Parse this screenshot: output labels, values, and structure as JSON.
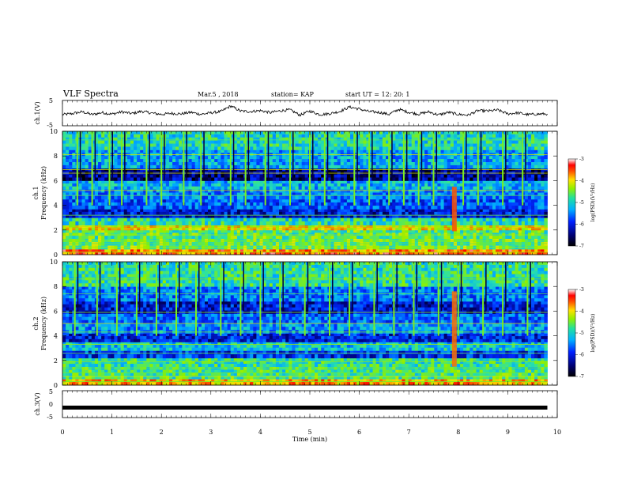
{
  "header": {
    "title": "VLF  Spectra",
    "date": "Mar.5  , 2018",
    "station": "station= KAP",
    "start": "start  UT  =   12: 20: 1"
  },
  "chart_data": [
    {
      "type": "line",
      "name": "ch1-waveform",
      "ylabel": "ch.1(V)",
      "ylim": [
        -5,
        5
      ],
      "yticks": [
        "5",
        "-5"
      ],
      "xlim": [
        0,
        10
      ],
      "x_end": 9.8,
      "points": [
        [
          0,
          -0.6
        ],
        [
          0.2,
          -0.2
        ],
        [
          0.4,
          0.5
        ],
        [
          0.6,
          -0.6
        ],
        [
          0.8,
          0.2
        ],
        [
          1.0,
          -0.4
        ],
        [
          1.2,
          0.5
        ],
        [
          1.4,
          -0.2
        ],
        [
          1.6,
          0.7
        ],
        [
          1.8,
          0.0
        ],
        [
          2.0,
          -0.5
        ],
        [
          2.2,
          -0.1
        ],
        [
          2.4,
          -0.3
        ],
        [
          2.6,
          0.3
        ],
        [
          2.8,
          -0.5
        ],
        [
          3.0,
          0.1
        ],
        [
          3.2,
          0.6
        ],
        [
          3.4,
          2.8
        ],
        [
          3.6,
          0.8
        ],
        [
          3.8,
          0.6
        ],
        [
          4.0,
          1.0
        ],
        [
          4.2,
          0.2
        ],
        [
          4.4,
          0.9
        ],
        [
          4.6,
          1.3
        ],
        [
          4.8,
          -0.8
        ],
        [
          5.0,
          0.8
        ],
        [
          5.2,
          -0.6
        ],
        [
          5.4,
          -0.2
        ],
        [
          5.6,
          0.6
        ],
        [
          5.8,
          2.4
        ],
        [
          6.0,
          1.6
        ],
        [
          6.2,
          0.6
        ],
        [
          6.4,
          0.3
        ],
        [
          6.6,
          -0.5
        ],
        [
          6.8,
          1.5
        ],
        [
          7.0,
          0.3
        ],
        [
          7.2,
          -0.4
        ],
        [
          7.4,
          0.5
        ],
        [
          7.6,
          -0.7
        ],
        [
          7.8,
          0.3
        ],
        [
          8.0,
          -0.5
        ],
        [
          8.2,
          -0.8
        ],
        [
          8.4,
          1.0
        ],
        [
          8.6,
          0.8
        ],
        [
          8.8,
          1.2
        ],
        [
          9.0,
          -0.3
        ],
        [
          9.2,
          0.1
        ],
        [
          9.4,
          -0.6
        ],
        [
          9.6,
          -0.4
        ],
        [
          9.8,
          -0.3
        ]
      ]
    },
    {
      "type": "heatmap",
      "name": "ch1-spectrogram",
      "ylabel": "ch.1",
      "ylabel2": "Frequency  (kHz)",
      "ylim": [
        0,
        10
      ],
      "yticks": [
        "0",
        "2",
        "4",
        "6",
        "8",
        "10"
      ],
      "xlim": [
        0,
        10
      ],
      "x_end": 9.8,
      "colorbar": {
        "label": "log(PSD)(V²/Hz)",
        "range": [
          -7,
          -3
        ],
        "ticks": [
          "-3",
          "-4",
          "-5",
          "-6",
          "-7"
        ]
      },
      "rows": [
        {
          "f": [
            0.0,
            0.45
          ],
          "lvl": -3.6
        },
        {
          "f": [
            0.45,
            1.3
          ],
          "lvl": -4.6
        },
        {
          "f": [
            1.3,
            2.0
          ],
          "lvl": -4.7
        },
        {
          "f": [
            2.0,
            2.4
          ],
          "lvl": -4.0
        },
        {
          "f": [
            2.4,
            3.0
          ],
          "lvl": -5.0
        },
        {
          "f": [
            3.0,
            3.7
          ],
          "lvl": -6.2
        },
        {
          "f": [
            3.7,
            4.5
          ],
          "lvl": -5.8
        },
        {
          "f": [
            4.5,
            5.3
          ],
          "lvl": -5.6
        },
        {
          "f": [
            5.3,
            6.0
          ],
          "lvl": -5.3
        },
        {
          "f": [
            6.0,
            7.0
          ],
          "lvl": -6.5
        },
        {
          "f": [
            7.0,
            8.5
          ],
          "lvl": -5.4
        },
        {
          "f": [
            8.5,
            10.0
          ],
          "lvl": -5.0
        }
      ],
      "lines_khz": [
        0.2,
        0.6,
        0.9,
        1.1,
        1.6,
        2.1,
        2.3,
        3.2,
        4.8,
        5.2,
        6.6,
        6.9,
        8.1,
        9.3
      ],
      "bursts_min": [
        0.3,
        0.6,
        0.95,
        1.2,
        1.7,
        2.0,
        2.45,
        2.8,
        3.4,
        3.7,
        4.1,
        4.6,
        5.0,
        5.3,
        5.9,
        6.2,
        6.6,
        6.9,
        7.2,
        7.5,
        8.1,
        8.4,
        8.9,
        9.3
      ],
      "event": {
        "t": 7.92,
        "f": [
          1.9,
          5.5
        ],
        "lvl": -3.5
      }
    },
    {
      "type": "heatmap",
      "name": "ch2-spectrogram",
      "ylabel": "ch.2",
      "ylabel2": "Frequency  (kHz)",
      "ylim": [
        0,
        10
      ],
      "yticks": [
        "0",
        "2",
        "4",
        "6",
        "8",
        "10"
      ],
      "xlim": [
        0,
        10
      ],
      "x_end": 9.8,
      "colorbar": {
        "label": "log(PSD)(V²/Hz)",
        "range": [
          -7,
          -3
        ],
        "ticks": [
          "-3",
          "-4",
          "-5",
          "-6",
          "-7"
        ]
      },
      "rows": [
        {
          "f": [
            0.0,
            0.5
          ],
          "lvl": -3.8
        },
        {
          "f": [
            0.5,
            1.5
          ],
          "lvl": -4.8
        },
        {
          "f": [
            1.5,
            2.2
          ],
          "lvl": -4.9
        },
        {
          "f": [
            2.2,
            2.8
          ],
          "lvl": -6.0
        },
        {
          "f": [
            2.8,
            3.5
          ],
          "lvl": -5.2
        },
        {
          "f": [
            3.5,
            4.2
          ],
          "lvl": -6.1
        },
        {
          "f": [
            4.2,
            5.0
          ],
          "lvl": -5.5
        },
        {
          "f": [
            5.0,
            5.8
          ],
          "lvl": -5.7
        },
        {
          "f": [
            5.8,
            6.8
          ],
          "lvl": -6.2
        },
        {
          "f": [
            6.8,
            8.0
          ],
          "lvl": -5.6
        },
        {
          "f": [
            8.0,
            10.0
          ],
          "lvl": -4.9
        }
      ],
      "lines_khz": [
        0.3,
        0.7,
        1.0,
        1.4,
        1.9,
        2.6,
        3.3,
        4.3,
        5.0,
        5.9,
        7.4,
        8.6
      ],
      "bursts_min": [
        0.25,
        0.7,
        1.1,
        1.5,
        1.9,
        2.3,
        2.7,
        3.2,
        3.6,
        4.0,
        4.4,
        4.9,
        5.4,
        5.8,
        6.3,
        6.7,
        7.1,
        7.6,
        8.0,
        8.5,
        8.9,
        9.4
      ],
      "event": {
        "t": 7.92,
        "f": [
          1.5,
          7.6
        ],
        "lvl": -3.6
      }
    },
    {
      "type": "line",
      "name": "ch3-waveform",
      "ylabel": "ch.3(V)",
      "ylim": [
        -5,
        5
      ],
      "yticks": [
        "5",
        "0",
        "-5"
      ],
      "xlim": [
        0,
        10
      ],
      "x_end": 9.8,
      "points": [
        [
          0,
          -1.3
        ],
        [
          9.8,
          -1.3
        ]
      ]
    }
  ],
  "xaxis": {
    "label": "Time  (min)",
    "ticks": [
      "0",
      "1",
      "2",
      "3",
      "4",
      "5",
      "6",
      "7",
      "8",
      "9",
      "10"
    ]
  }
}
